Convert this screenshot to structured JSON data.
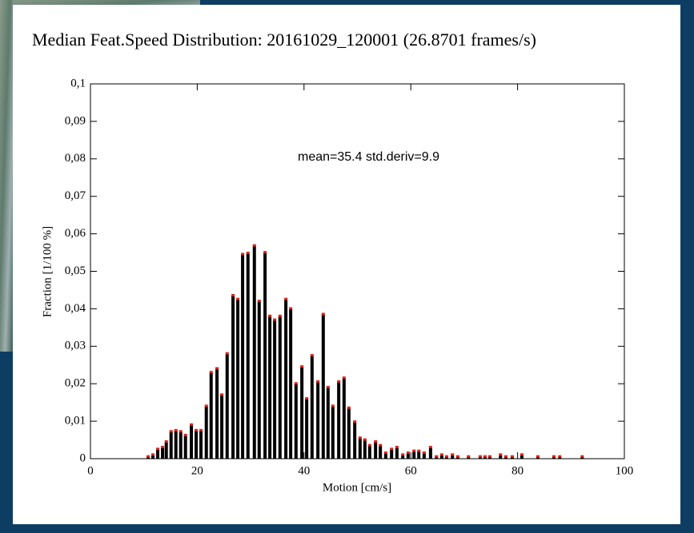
{
  "chart_data": {
    "type": "bar",
    "title": "Median Feat.Speed Distribution: 20161029_120001 (26.8701 frames/s)",
    "annotation": "mean=35.4 std.deriv=9.9",
    "x_label": "Motion [cm/s]",
    "y_label": "Fraction [1/100 %]",
    "color": "#000000",
    "marker_color": "#e0201a",
    "xlim": [
      0,
      100
    ],
    "ylim": [
      0,
      0.1
    ],
    "xticks": [
      0,
      20,
      40,
      60,
      80,
      100
    ],
    "yticks": [
      0,
      {
        "value": 0.01,
        "label": "0,01"
      },
      {
        "value": 0.02,
        "label": "0,02"
      },
      {
        "value": 0.03,
        "label": "0,03"
      },
      {
        "value": 0.04,
        "label": "0,04"
      },
      {
        "value": 0.05,
        "label": "0,05"
      },
      {
        "value": 0.06,
        "label": "0,06"
      },
      {
        "value": 0.07,
        "label": "0,07"
      },
      {
        "value": 0.08,
        "label": "0,08"
      },
      {
        "value": 0.09,
        "label": "0,09"
      },
      {
        "value": 0.1,
        "label": "0,1"
      }
    ],
    "grid": false,
    "x": [
      10.8,
      11.7,
      12.6,
      13.5,
      14.2,
      15.1,
      16.0,
      16.9,
      17.8,
      18.9,
      19.8,
      20.7,
      21.7,
      22.6,
      23.7,
      24.6,
      25.6,
      26.7,
      27.6,
      28.5,
      29.5,
      30.7,
      31.6,
      32.7,
      33.6,
      34.5,
      35.5,
      36.6,
      37.5,
      38.5,
      39.6,
      40.5,
      41.5,
      42.6,
      43.6,
      44.5,
      45.4,
      46.5,
      47.5,
      48.4,
      49.5,
      50.5,
      51.4,
      52.3,
      53.4,
      54.3,
      55.3,
      56.4,
      57.4,
      58.5,
      59.5,
      60.6,
      61.5,
      62.5,
      63.7,
      64.8,
      65.8,
      66.7,
      67.8,
      68.8,
      70.8,
      73.0,
      73.9,
      74.8,
      76.8,
      77.8,
      79.0,
      80.8,
      83.8,
      86.8,
      87.9,
      92.1
    ],
    "values": [
      0.0005,
      0.001,
      0.0025,
      0.003,
      0.0045,
      0.0072,
      0.0075,
      0.0072,
      0.0062,
      0.009,
      0.0075,
      0.0075,
      0.014,
      0.023,
      0.024,
      0.017,
      0.028,
      0.0435,
      0.0425,
      0.0545,
      0.0548,
      0.0568,
      0.042,
      0.055,
      0.038,
      0.037,
      0.038,
      0.0425,
      0.04,
      0.02,
      0.0245,
      0.016,
      0.0275,
      0.0205,
      0.0385,
      0.019,
      0.014,
      0.0205,
      0.0215,
      0.0135,
      0.0098,
      0.0055,
      0.005,
      0.0035,
      0.0045,
      0.0035,
      0.0015,
      0.0025,
      0.003,
      0.001,
      0.0015,
      0.002,
      0.002,
      0.0015,
      0.003,
      0.0005,
      0.001,
      0.0005,
      0.001,
      0.0005,
      0.0005,
      0.0005,
      0.0005,
      0.0005,
      0.001,
      0.0005,
      0.0005,
      0.001,
      0.0005,
      0.0005,
      0.0005,
      0.0005
    ]
  }
}
